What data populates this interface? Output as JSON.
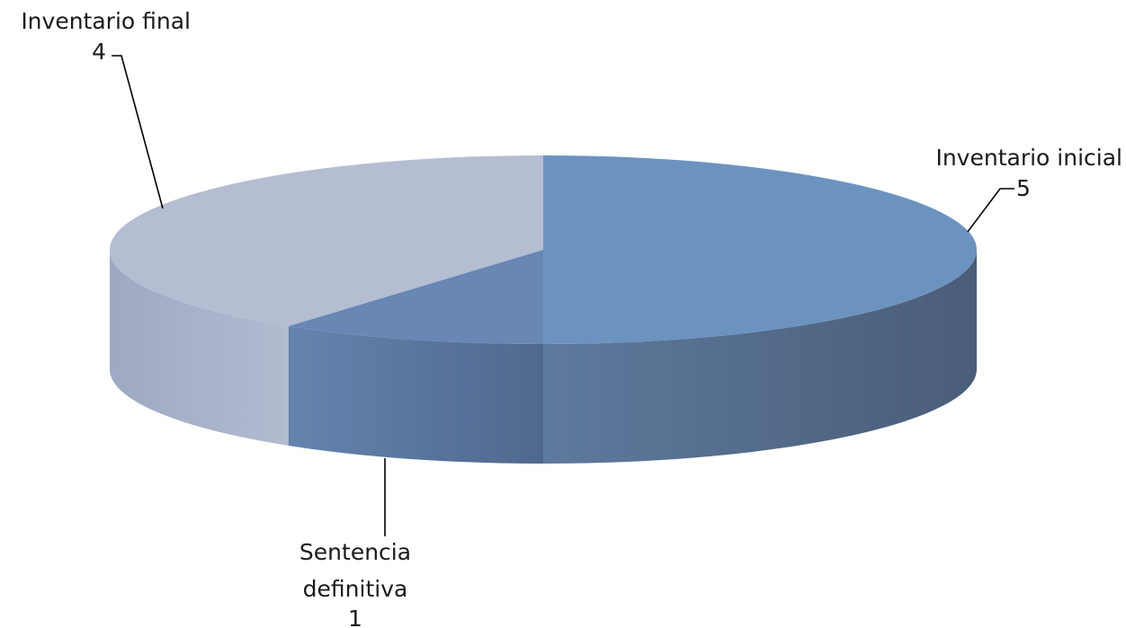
{
  "chart_data": {
    "type": "pie",
    "style": "3d",
    "title": "",
    "slices": [
      {
        "label": "Inventario inicial",
        "value": 5,
        "color": "#6c93bf"
      },
      {
        "label": "Sentencia definitiva",
        "value": 1,
        "label_lines": [
          "Sentencia",
          "definitiva"
        ],
        "color": "#6887b5"
      },
      {
        "label": "Inventario final",
        "value": 4,
        "color": "#b4bdd2"
      }
    ],
    "legend": "none"
  }
}
